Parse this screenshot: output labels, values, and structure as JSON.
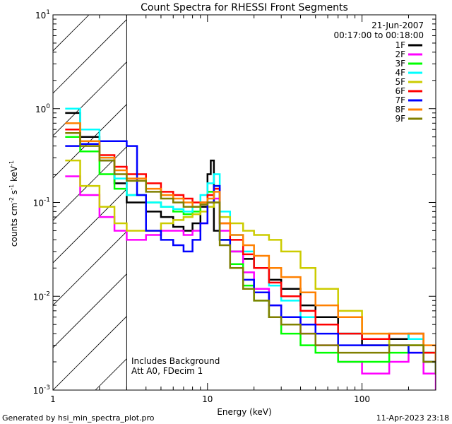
{
  "chart_data": {
    "type": "line",
    "title": "Count Spectra for RHESSI Front Segments",
    "xlabel": "Energy (keV)",
    "ylabel_parts": {
      "pre": "counts cm",
      "e1": "-2",
      "mid": " s",
      "e2": "-1",
      "post": " keV",
      "e3": "-1"
    },
    "x_scale": "log",
    "y_scale": "log",
    "xlim": [
      1,
      300
    ],
    "ylim": [
      0.001,
      10
    ],
    "x_ticks": [
      {
        "value": 1,
        "label": "1"
      },
      {
        "value": 10,
        "label": "10"
      },
      {
        "value": 100,
        "label": "100"
      }
    ],
    "y_ticks": [
      {
        "value": 0.001,
        "base": "10",
        "exp": "-3"
      },
      {
        "value": 0.01,
        "base": "10",
        "exp": "-2"
      },
      {
        "value": 0.1,
        "base": "10",
        "exp": "-1"
      },
      {
        "value": 1,
        "base": "10",
        "exp": "0"
      },
      {
        "value": 10,
        "base": "10",
        "exp": "1"
      }
    ],
    "shaded_region": [
      1,
      3
    ],
    "info": {
      "date": "21-Jun-2007",
      "time_range": "00:17:00 to 00:18:00"
    },
    "notes": [
      "Includes Background",
      "Att A0, FDecim 1"
    ],
    "series": [
      {
        "name": "1F",
        "color": "#000000",
        "x": [
          1.2,
          1.5,
          2,
          2.5,
          3,
          4,
          5,
          6,
          7,
          8,
          9,
          10,
          10.5,
          11,
          12,
          14,
          17,
          20,
          25,
          30,
          40,
          50,
          70,
          100,
          150,
          200,
          250,
          300
        ],
        "y": [
          0.9,
          0.5,
          0.28,
          0.16,
          0.1,
          0.08,
          0.07,
          0.055,
          0.05,
          0.06,
          0.09,
          0.2,
          0.28,
          0.05,
          0.04,
          0.03,
          0.025,
          0.02,
          0.015,
          0.012,
          0.008,
          0.006,
          0.004,
          0.003,
          0.0035,
          0.004,
          0.0025,
          0.0015
        ]
      },
      {
        "name": "2F",
        "color": "#ff00ff",
        "x": [
          1.2,
          1.5,
          2,
          2.5,
          3,
          4,
          5,
          6,
          7,
          8,
          9,
          10,
          11,
          12,
          14,
          17,
          20,
          25,
          30,
          40,
          50,
          70,
          100,
          150,
          200,
          250,
          300
        ],
        "y": [
          0.19,
          0.12,
          0.07,
          0.05,
          0.04,
          0.045,
          0.05,
          0.05,
          0.045,
          0.05,
          0.06,
          0.1,
          0.11,
          0.05,
          0.03,
          0.018,
          0.012,
          0.008,
          0.006,
          0.004,
          0.003,
          0.002,
          0.0015,
          0.002,
          0.0025,
          0.0015,
          0.001
        ]
      },
      {
        "name": "3F",
        "color": "#00ff00",
        "x": [
          1.2,
          1.5,
          2,
          2.5,
          3,
          4,
          5,
          6,
          7,
          8,
          9,
          10,
          11,
          12,
          14,
          17,
          20,
          25,
          30,
          40,
          50,
          70,
          100,
          150,
          200,
          250,
          300
        ],
        "y": [
          0.5,
          0.35,
          0.2,
          0.14,
          0.12,
          0.1,
          0.09,
          0.08,
          0.075,
          0.08,
          0.1,
          0.13,
          0.15,
          0.04,
          0.022,
          0.013,
          0.009,
          0.006,
          0.004,
          0.003,
          0.0025,
          0.002,
          0.002,
          0.0025,
          0.003,
          0.002,
          0.0015
        ]
      },
      {
        "name": "4F",
        "color": "#00ffff",
        "x": [
          1.2,
          1.5,
          2,
          2.5,
          3,
          4,
          5,
          6,
          7,
          8,
          9,
          10,
          11,
          12,
          14,
          17,
          20,
          25,
          30,
          40,
          50,
          70,
          100,
          150,
          200,
          250,
          300
        ],
        "y": [
          1.0,
          0.6,
          0.3,
          0.18,
          0.12,
          0.1,
          0.09,
          0.085,
          0.08,
          0.09,
          0.12,
          0.16,
          0.2,
          0.08,
          0.045,
          0.03,
          0.02,
          0.013,
          0.009,
          0.006,
          0.005,
          0.004,
          0.0035,
          0.004,
          0.0035,
          0.0025,
          0.002
        ]
      },
      {
        "name": "5F",
        "color": "#cccc00",
        "x": [
          1.2,
          1.5,
          2,
          2.5,
          3,
          4,
          5,
          6,
          7,
          8,
          9,
          10,
          11,
          12,
          14,
          17,
          20,
          25,
          30,
          40,
          50,
          70,
          100,
          150,
          200,
          250,
          300
        ],
        "y": [
          0.28,
          0.15,
          0.09,
          0.06,
          0.05,
          0.05,
          0.06,
          0.065,
          0.07,
          0.075,
          0.08,
          0.09,
          0.1,
          0.07,
          0.06,
          0.05,
          0.045,
          0.04,
          0.03,
          0.02,
          0.012,
          0.007,
          0.004,
          0.003,
          0.003,
          0.0025,
          0.002
        ]
      },
      {
        "name": "6F",
        "color": "#ff0000",
        "x": [
          1.2,
          1.5,
          2,
          2.5,
          3,
          4,
          5,
          6,
          7,
          8,
          9,
          10,
          11,
          12,
          14,
          17,
          20,
          25,
          30,
          40,
          50,
          70,
          100,
          150,
          200,
          250,
          300
        ],
        "y": [
          0.6,
          0.45,
          0.32,
          0.24,
          0.2,
          0.16,
          0.13,
          0.12,
          0.11,
          0.1,
          0.1,
          0.12,
          0.14,
          0.06,
          0.04,
          0.028,
          0.02,
          0.014,
          0.01,
          0.007,
          0.005,
          0.004,
          0.0035,
          0.004,
          0.004,
          0.0025,
          0.002
        ]
      },
      {
        "name": "7F",
        "color": "#0000ff",
        "x": [
          1.2,
          1.5,
          2,
          2.5,
          3,
          3.5,
          4,
          5,
          6,
          7,
          8,
          9,
          10,
          11,
          12,
          14,
          17,
          20,
          25,
          30,
          40,
          50,
          70,
          100,
          150,
          200,
          250,
          300
        ],
        "y": [
          0.4,
          0.42,
          0.45,
          0.45,
          0.4,
          0.12,
          0.05,
          0.04,
          0.035,
          0.03,
          0.04,
          0.06,
          0.1,
          0.15,
          0.04,
          0.02,
          0.015,
          0.011,
          0.008,
          0.006,
          0.005,
          0.004,
          0.003,
          0.003,
          0.003,
          0.0025,
          0.002,
          0.0015
        ]
      },
      {
        "name": "8F",
        "color": "#ff8000",
        "x": [
          1.2,
          1.5,
          2,
          2.5,
          3,
          4,
          5,
          6,
          7,
          8,
          9,
          10,
          11,
          12,
          14,
          17,
          20,
          25,
          30,
          40,
          50,
          70,
          100,
          150,
          200,
          250,
          300
        ],
        "y": [
          0.7,
          0.45,
          0.3,
          0.22,
          0.18,
          0.14,
          0.12,
          0.11,
          0.1,
          0.09,
          0.1,
          0.11,
          0.13,
          0.06,
          0.045,
          0.035,
          0.027,
          0.02,
          0.016,
          0.011,
          0.008,
          0.006,
          0.004,
          0.004,
          0.004,
          0.003,
          0.002
        ]
      },
      {
        "name": "9F",
        "color": "#808000",
        "x": [
          1.2,
          1.5,
          2,
          2.5,
          3,
          4,
          5,
          6,
          7,
          8,
          9,
          10,
          11,
          12,
          14,
          17,
          20,
          25,
          30,
          40,
          50,
          70,
          100,
          150,
          200,
          250,
          300
        ],
        "y": [
          0.55,
          0.4,
          0.28,
          0.2,
          0.17,
          0.13,
          0.11,
          0.1,
          0.09,
          0.09,
          0.095,
          0.1,
          0.1,
          0.035,
          0.02,
          0.012,
          0.009,
          0.006,
          0.005,
          0.004,
          0.003,
          0.0025,
          0.0025,
          0.003,
          0.003,
          0.002,
          0.0015
        ]
      }
    ]
  },
  "footer": {
    "generated_by": "Generated by hsi_min_spectra_plot.pro",
    "timestamp": "11-Apr-2023 23:18"
  }
}
